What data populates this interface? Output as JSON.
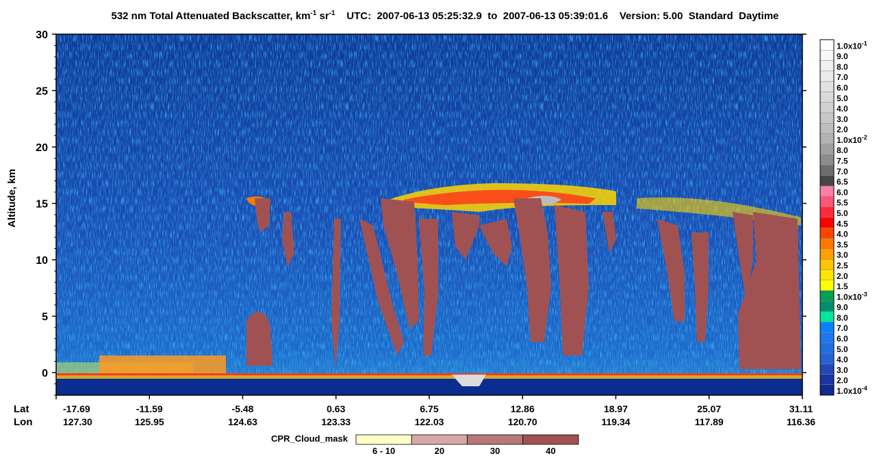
{
  "title": {
    "product": "532 nm Total Attenuated Backscatter, km",
    "unit_km_exp": "-1",
    "unit_sr": "sr",
    "unit_sr_exp": "-1",
    "utc_label": "UTC:",
    "start_time": "2007-06-13 05:25:32.9",
    "to_word": "to",
    "end_time": "2007-06-13 05:39:01.6",
    "version_label": "Version: 5.00",
    "product_level": "Standard",
    "day_night": "Daytime"
  },
  "chart_data": {
    "type": "heatmap",
    "ylabel": "Altitude, km",
    "ylim": [
      -2,
      30
    ],
    "y_ticks": [
      "0",
      "5",
      "10",
      "15",
      "20",
      "25",
      "30"
    ],
    "x_row_labels": [
      "Lat",
      "Lon"
    ],
    "x_ticks": [
      {
        "lat": "-17.69",
        "lon": "127.30"
      },
      {
        "lat": "-11.59",
        "lon": "125.95"
      },
      {
        "lat": "-5.48",
        "lon": "124.63"
      },
      {
        "lat": "0.63",
        "lon": "123.33"
      },
      {
        "lat": "6.75",
        "lon": "122.03"
      },
      {
        "lat": "12.86",
        "lon": "120.70"
      },
      {
        "lat": "18.97",
        "lon": "119.34"
      },
      {
        "lat": "25.07",
        "lon": "117.89"
      },
      {
        "lat": "31.11",
        "lon": "116.36"
      }
    ],
    "colorbar": {
      "entries": [
        {
          "label": "1.0x10",
          "exp": "-1",
          "color": "#ffffff"
        },
        {
          "label": "9.0",
          "color": "#f8f8f8"
        },
        {
          "label": "8.0",
          "color": "#f1f1f1"
        },
        {
          "label": "7.0",
          "color": "#eaeaea"
        },
        {
          "label": "6.0",
          "color": "#e2e2e2"
        },
        {
          "label": "5.0",
          "color": "#dadada"
        },
        {
          "label": "4.0",
          "color": "#d1d1d1"
        },
        {
          "label": "3.0",
          "color": "#c8c8c8"
        },
        {
          "label": "2.0",
          "color": "#bebebe"
        },
        {
          "label": "1.0x10",
          "exp": "-2",
          "color": "#b3b3b3"
        },
        {
          "label": "8.0",
          "color": "#a0a0a0"
        },
        {
          "label": "7.5",
          "color": "#8c8c8c"
        },
        {
          "label": "7.0",
          "color": "#6c6c6c"
        },
        {
          "label": "6.5",
          "color": "#474747"
        },
        {
          "label": "6.0",
          "color": "#ff7fa6"
        },
        {
          "label": "5.5",
          "color": "#ff5577"
        },
        {
          "label": "5.0",
          "color": "#ff2a3c"
        },
        {
          "label": "4.5",
          "color": "#ff0000"
        },
        {
          "label": "4.0",
          "color": "#ff4400"
        },
        {
          "label": "3.5",
          "color": "#ff7700"
        },
        {
          "label": "3.0",
          "color": "#ffa000"
        },
        {
          "label": "2.5",
          "color": "#ffc400"
        },
        {
          "label": "2.0",
          "color": "#ffe600"
        },
        {
          "label": "1.5",
          "color": "#ffff00"
        },
        {
          "label": "1.0x10",
          "exp": "-3",
          "color": "#00a050"
        },
        {
          "label": "9.0",
          "color": "#00906e"
        },
        {
          "label": "8.0",
          "color": "#00e6a0"
        },
        {
          "label": "7.0",
          "color": "#0a82ff"
        },
        {
          "label": "6.0",
          "color": "#1a78f0"
        },
        {
          "label": "5.0",
          "color": "#1f6ee0"
        },
        {
          "label": "4.0",
          "color": "#2462d6"
        },
        {
          "label": "3.0",
          "color": "#2248b8"
        },
        {
          "label": "2.0",
          "color": "#1a34a0"
        },
        {
          "label": "1.0x10",
          "exp": "-4",
          "color": "#0f2a90"
        }
      ]
    },
    "cloud_mask_legend": {
      "title": "CPR_Cloud_mask",
      "bins": [
        {
          "label": "6 - 10",
          "color": "#ffffc8"
        },
        {
          "label": "20",
          "color": "#d8a8a8"
        },
        {
          "label": "30",
          "color": "#b87878"
        },
        {
          "label": "40",
          "color": "#a05252"
        }
      ]
    }
  }
}
